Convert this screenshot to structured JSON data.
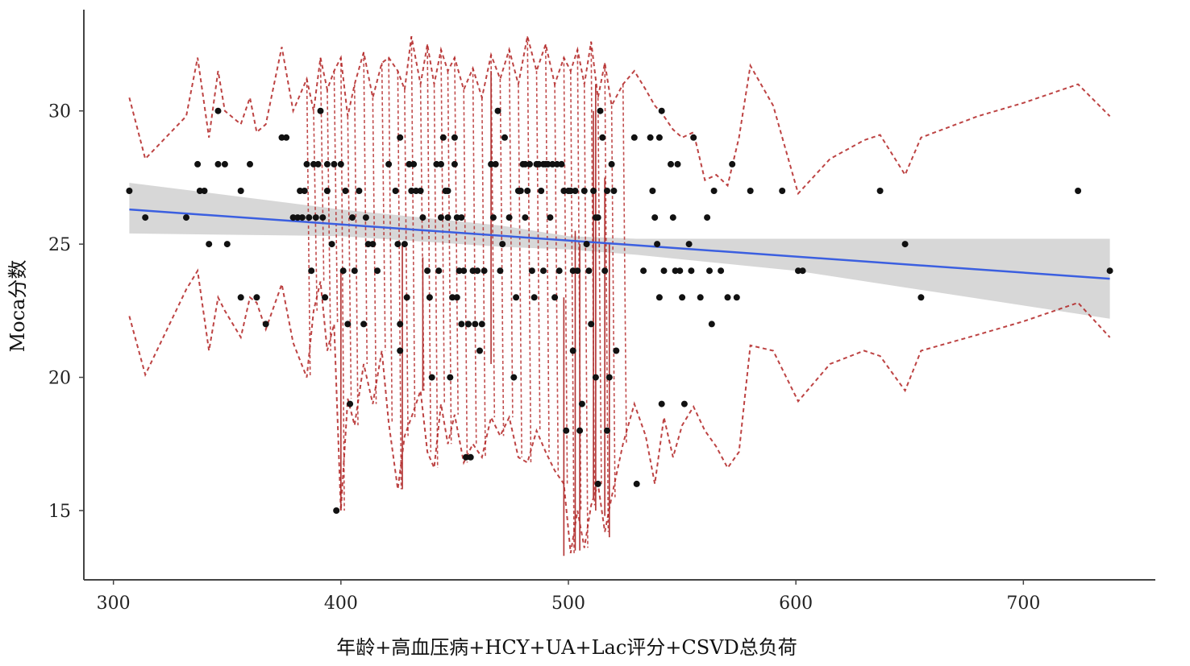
{
  "chart_data": {
    "type": "scatter",
    "xlabel": "年龄+高血压病+HCY+UA+Lac评分+CSVD总负荷",
    "ylabel": "Moca分数",
    "xlim": [
      287,
      758
    ],
    "ylim": [
      12.4,
      33.8
    ],
    "x_ticks": [
      300,
      400,
      500,
      600,
      700
    ],
    "y_ticks": [
      15,
      20,
      25,
      30
    ],
    "grid": false,
    "colors": {
      "points": "#111111",
      "fit_line": "#3b5fe0",
      "confidence_band": "#d3d3d3",
      "prediction_bounds": "#b22222"
    },
    "points": [
      [
        307,
        27
      ],
      [
        314,
        26
      ],
      [
        332,
        26
      ],
      [
        337,
        28
      ],
      [
        338,
        27
      ],
      [
        340,
        27
      ],
      [
        342,
        25
      ],
      [
        346,
        30
      ],
      [
        346,
        28
      ],
      [
        349,
        28
      ],
      [
        350,
        25
      ],
      [
        356,
        23
      ],
      [
        356,
        27
      ],
      [
        360,
        28
      ],
      [
        363,
        23
      ],
      [
        367,
        22
      ],
      [
        374,
        29
      ],
      [
        376,
        29
      ],
      [
        379,
        26
      ],
      [
        381,
        26
      ],
      [
        382,
        27
      ],
      [
        383,
        26
      ],
      [
        384,
        27
      ],
      [
        385,
        28
      ],
      [
        386,
        26
      ],
      [
        387,
        24
      ],
      [
        388,
        28
      ],
      [
        389,
        26
      ],
      [
        390,
        28
      ],
      [
        391,
        30
      ],
      [
        392,
        26
      ],
      [
        393,
        23
      ],
      [
        394,
        28
      ],
      [
        394,
        27
      ],
      [
        396,
        25
      ],
      [
        397,
        28
      ],
      [
        398,
        15
      ],
      [
        400,
        28
      ],
      [
        401,
        24
      ],
      [
        402,
        27
      ],
      [
        403,
        22
      ],
      [
        404,
        19
      ],
      [
        405,
        26
      ],
      [
        406,
        24
      ],
      [
        408,
        27
      ],
      [
        410,
        22
      ],
      [
        411,
        26
      ],
      [
        412,
        25
      ],
      [
        414,
        25
      ],
      [
        416,
        24
      ],
      [
        421,
        28
      ],
      [
        424,
        27
      ],
      [
        425,
        25
      ],
      [
        426,
        22
      ],
      [
        426,
        29
      ],
      [
        426,
        21
      ],
      [
        428,
        25
      ],
      [
        429,
        23
      ],
      [
        430,
        28
      ],
      [
        431,
        27
      ],
      [
        432,
        28
      ],
      [
        433,
        27
      ],
      [
        435,
        27
      ],
      [
        436,
        26
      ],
      [
        438,
        24
      ],
      [
        439,
        23
      ],
      [
        440,
        20
      ],
      [
        442,
        28
      ],
      [
        443,
        24
      ],
      [
        444,
        26
      ],
      [
        444,
        28
      ],
      [
        445,
        29
      ],
      [
        446,
        27
      ],
      [
        447,
        26
      ],
      [
        447,
        27
      ],
      [
        448,
        20
      ],
      [
        449,
        23
      ],
      [
        450,
        29
      ],
      [
        450,
        28
      ],
      [
        451,
        23
      ],
      [
        451,
        26
      ],
      [
        452,
        24
      ],
      [
        453,
        26
      ],
      [
        453,
        22
      ],
      [
        454,
        24
      ],
      [
        455,
        17
      ],
      [
        456,
        22
      ],
      [
        456,
        22
      ],
      [
        457,
        17
      ],
      [
        458,
        24
      ],
      [
        459,
        22
      ],
      [
        460,
        24
      ],
      [
        461,
        21
      ],
      [
        462,
        22
      ],
      [
        463,
        24
      ],
      [
        466,
        28
      ],
      [
        467,
        26
      ],
      [
        468,
        28
      ],
      [
        469,
        30
      ],
      [
        470,
        24
      ],
      [
        471,
        25
      ],
      [
        472,
        29
      ],
      [
        474,
        26
      ],
      [
        476,
        20
      ],
      [
        477,
        23
      ],
      [
        478,
        27
      ],
      [
        479,
        27
      ],
      [
        480,
        28
      ],
      [
        481,
        26
      ],
      [
        481,
        28
      ],
      [
        482,
        27
      ],
      [
        483,
        28
      ],
      [
        484,
        24
      ],
      [
        485,
        23
      ],
      [
        486,
        28
      ],
      [
        487,
        28
      ],
      [
        488,
        27
      ],
      [
        489,
        24
      ],
      [
        489,
        28
      ],
      [
        490,
        28
      ],
      [
        491,
        28
      ],
      [
        492,
        26
      ],
      [
        493,
        28
      ],
      [
        494,
        23
      ],
      [
        495,
        28
      ],
      [
        496,
        24
      ],
      [
        497,
        28
      ],
      [
        498,
        27
      ],
      [
        499,
        18
      ],
      [
        500,
        27
      ],
      [
        501,
        27
      ],
      [
        502,
        21
      ],
      [
        502,
        24
      ],
      [
        503,
        27
      ],
      [
        504,
        24
      ],
      [
        505,
        18
      ],
      [
        506,
        19
      ],
      [
        507,
        27
      ],
      [
        508,
        25
      ],
      [
        509,
        24
      ],
      [
        510,
        22
      ],
      [
        511,
        27
      ],
      [
        512,
        26
      ],
      [
        512,
        20
      ],
      [
        513,
        16
      ],
      [
        513,
        26
      ],
      [
        514,
        30
      ],
      [
        515,
        29
      ],
      [
        516,
        24
      ],
      [
        517,
        27
      ],
      [
        517,
        18
      ],
      [
        518,
        20
      ],
      [
        519,
        28
      ],
      [
        520,
        27
      ],
      [
        521,
        21
      ],
      [
        529,
        29
      ],
      [
        530,
        16
      ],
      [
        533,
        24
      ],
      [
        536,
        29
      ],
      [
        537,
        27
      ],
      [
        538,
        26
      ],
      [
        539,
        25
      ],
      [
        540,
        23
      ],
      [
        540,
        29
      ],
      [
        541,
        30
      ],
      [
        541,
        19
      ],
      [
        542,
        24
      ],
      [
        545,
        28
      ],
      [
        546,
        26
      ],
      [
        547,
        24
      ],
      [
        548,
        28
      ],
      [
        549,
        24
      ],
      [
        550,
        23
      ],
      [
        551,
        19
      ],
      [
        553,
        25
      ],
      [
        554,
        24
      ],
      [
        555,
        29
      ],
      [
        558,
        23
      ],
      [
        561,
        26
      ],
      [
        562,
        24
      ],
      [
        563,
        22
      ],
      [
        564,
        27
      ],
      [
        567,
        24
      ],
      [
        570,
        23
      ],
      [
        572,
        28
      ],
      [
        574,
        23
      ],
      [
        580,
        27
      ],
      [
        594,
        27
      ],
      [
        601,
        24
      ],
      [
        603,
        24
      ],
      [
        637,
        27
      ],
      [
        648,
        25
      ],
      [
        655,
        23
      ],
      [
        724,
        27
      ],
      [
        738,
        24
      ]
    ],
    "fit_line": {
      "x": [
        307,
        738
      ],
      "y": [
        26.3,
        23.7
      ]
    },
    "confidence_band": {
      "x": [
        307,
        400,
        470,
        500,
        530,
        600,
        738
      ],
      "upper": [
        27.3,
        26.3,
        25.7,
        25.3,
        25.2,
        25.2,
        25.2
      ],
      "lower": [
        25.4,
        25.3,
        24.9,
        24.8,
        24.6,
        24.0,
        22.2
      ]
    },
    "prediction_bounds": {
      "upper": {
        "x": [
          307,
          314,
          332,
          337,
          342,
          346,
          349,
          356,
          360,
          363,
          367,
          374,
          379,
          385,
          388,
          391,
          394,
          397,
          400,
          403,
          406,
          410,
          414,
          418,
          421,
          425,
          428,
          431,
          435,
          438,
          441,
          444,
          447,
          450,
          454,
          458,
          462,
          466,
          470,
          474,
          478,
          482,
          486,
          490,
          494,
          498,
          501,
          504,
          507,
          510,
          513,
          516,
          519,
          524,
          529,
          534,
          538,
          542,
          546,
          550,
          555,
          560,
          565,
          570,
          575,
          580,
          590,
          601,
          615,
          630,
          637,
          648,
          655,
          680,
          700,
          724,
          738
        ],
        "y": [
          30.5,
          28.2,
          29.8,
          32.0,
          29.0,
          31.5,
          30.0,
          29.5,
          30.5,
          29.2,
          29.5,
          32.4,
          30.0,
          31.2,
          30.0,
          32.0,
          30.8,
          31.5,
          32.0,
          29.8,
          31.0,
          32.2,
          30.5,
          31.8,
          32.0,
          31.5,
          30.8,
          32.8,
          31.0,
          32.5,
          31.0,
          32.3,
          31.5,
          32.0,
          30.8,
          31.6,
          30.5,
          32.1,
          31.2,
          32.3,
          31.0,
          32.8,
          31.5,
          32.5,
          31.0,
          32.0,
          31.5,
          32.3,
          31.0,
          32.6,
          30.5,
          31.8,
          30.2,
          31.0,
          31.5,
          30.8,
          30.2,
          29.8,
          29.3,
          29.0,
          29.2,
          27.4,
          27.6,
          27.2,
          29.0,
          31.7,
          30.2,
          26.9,
          28.2,
          28.9,
          29.1,
          27.6,
          29.0,
          29.8,
          30.3,
          31.0,
          29.8
        ]
      },
      "lower": {
        "x": [
          307,
          314,
          332,
          337,
          342,
          346,
          349,
          356,
          360,
          363,
          367,
          374,
          379,
          385,
          388,
          391,
          394,
          397,
          400,
          403,
          406,
          410,
          414,
          418,
          421,
          425,
          428,
          431,
          435,
          438,
          441,
          444,
          447,
          450,
          454,
          458,
          462,
          466,
          470,
          474,
          478,
          482,
          486,
          490,
          494,
          498,
          501,
          504,
          507,
          510,
          513,
          516,
          519,
          524,
          529,
          534,
          538,
          542,
          546,
          550,
          555,
          560,
          565,
          570,
          575,
          580,
          590,
          601,
          615,
          630,
          637,
          648,
          655,
          680,
          700,
          724,
          738
        ],
        "y": [
          22.3,
          20.1,
          23.3,
          24.0,
          21.0,
          23.0,
          22.5,
          21.5,
          23.0,
          22.8,
          21.8,
          23.5,
          21.3,
          20.0,
          22.5,
          23.6,
          21.0,
          22.0,
          15.0,
          19.2,
          18.2,
          20.5,
          19.0,
          21.0,
          18.3,
          15.8,
          17.8,
          18.5,
          19.5,
          17.2,
          16.6,
          19.0,
          17.5,
          18.6,
          16.8,
          17.5,
          17.0,
          18.5,
          17.8,
          18.5,
          17.0,
          16.8,
          18.0,
          17.2,
          16.5,
          16.0,
          13.4,
          15.0,
          13.6,
          15.2,
          16.0,
          14.2,
          15.5,
          17.5,
          19.0,
          17.8,
          16.0,
          18.5,
          17.0,
          18.2,
          18.9,
          18.0,
          17.4,
          16.6,
          17.2,
          21.2,
          21.0,
          19.1,
          20.5,
          21.0,
          20.8,
          19.5,
          21.0,
          21.6,
          22.1,
          22.8,
          21.5
        ]
      }
    },
    "spikes": {
      "solid": [
        [
          427,
          15.8,
          25.0
        ],
        [
          436,
          19.5,
          24.5
        ],
        [
          466,
          20.5,
          31.5
        ],
        [
          498,
          13.3,
          23.0
        ],
        [
          503,
          13.5,
          25.5
        ],
        [
          505,
          13.5,
          25.0
        ],
        [
          511,
          15.5,
          30.0
        ],
        [
          512,
          15.0,
          31.0
        ],
        [
          516,
          14.8,
          27.5
        ],
        [
          518,
          14.0,
          25.0
        ],
        [
          400,
          15.0,
          24.0
        ]
      ]
    }
  }
}
